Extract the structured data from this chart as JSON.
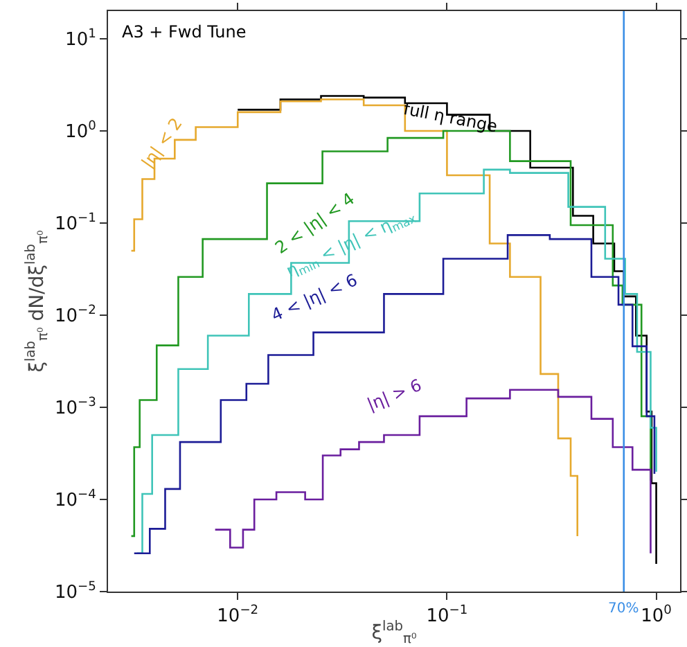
{
  "chart_data": {
    "type": "step",
    "title": "A3 + Fwd Tune",
    "xlabel": "ξ$^{lab}$$_{π⁰}$",
    "ylabel": "ξ$^{lab}$$_{π⁰}$ dN/dξ$^{lab}$$_{π⁰}$",
    "log": "xy",
    "grid": false,
    "legend": false,
    "line_style": "solid",
    "marker": "none",
    "xlim": [
      0.0024,
      1.3
    ],
    "ylim": [
      1e-05,
      20
    ],
    "xticks": [
      {
        "value": 0.01,
        "label": "10$^{−2}$"
      },
      {
        "value": 0.1,
        "label": "10$^{−1}$"
      },
      {
        "value": 1,
        "label": "10$^{0}$"
      }
    ],
    "yticks": [
      {
        "value": 1e-05,
        "label": "10$^{−5}$"
      },
      {
        "value": 0.0001,
        "label": "10$^{−4}$"
      },
      {
        "value": 0.001,
        "label": "10$^{−3}$"
      },
      {
        "value": 0.01,
        "label": "10$^{−2}$"
      },
      {
        "value": 0.1,
        "label": "10$^{−1}$"
      },
      {
        "value": 1,
        "label": "10$^{0}$"
      },
      {
        "value": 10,
        "label": "10$^{1}$"
      }
    ],
    "ref_lines": [
      {
        "axis": "x",
        "value": 0.7,
        "label": "70%",
        "color": "#3a8ee6"
      }
    ],
    "series": [
      {
        "name": "full η range",
        "color": "#000000",
        "x": [
          0.01,
          0.016,
          0.025,
          0.04,
          0.063,
          0.1,
          0.16,
          0.25,
          0.4,
          0.5,
          0.63,
          0.7,
          0.8,
          0.9,
          0.95,
          1.0
        ],
        "values": [
          1.7,
          2.2,
          2.4,
          2.3,
          2.0,
          1.5,
          1.0,
          0.4,
          0.12,
          0.06,
          0.03,
          0.016,
          0.006,
          0.0009,
          0.00015,
          2e-05
        ]
      },
      {
        "name": "|η| < 2",
        "color": "#e6a92e",
        "x": [
          0.0031,
          0.0032,
          0.0035,
          0.004,
          0.005,
          0.0063,
          0.01,
          0.016,
          0.025,
          0.04,
          0.063,
          0.1,
          0.16,
          0.2,
          0.28,
          0.34,
          0.39,
          0.42
        ],
        "values": [
          0.05,
          0.11,
          0.3,
          0.5,
          0.8,
          1.1,
          1.6,
          2.1,
          2.2,
          1.9,
          1.0,
          0.33,
          0.06,
          0.026,
          0.0023,
          0.00046,
          0.00018,
          4e-05
        ]
      },
      {
        "name": "2 < |η| < 4",
        "color": "#229922",
        "x": [
          0.0031,
          0.0032,
          0.0034,
          0.0041,
          0.0052,
          0.0068,
          0.0138,
          0.0254,
          0.052,
          0.096,
          0.2,
          0.39,
          0.62,
          0.69,
          0.85,
          0.94
        ],
        "values": [
          4e-05,
          0.00037,
          0.0012,
          0.0047,
          0.026,
          0.067,
          0.27,
          0.6,
          0.84,
          1.0,
          0.47,
          0.095,
          0.021,
          0.013,
          0.0008,
          0.00016
        ]
      },
      {
        "name": "η$_{min}$ < |η| < η$_{max}$",
        "color": "#3fc4b8",
        "x": [
          0.0033,
          0.0035,
          0.0039,
          0.0052,
          0.0072,
          0.0113,
          0.018,
          0.034,
          0.074,
          0.15,
          0.2,
          0.38,
          0.57,
          0.71,
          0.81,
          0.94,
          1.0
        ],
        "values": [
          2.6e-05,
          0.000115,
          0.0005,
          0.0026,
          0.006,
          0.017,
          0.037,
          0.105,
          0.21,
          0.38,
          0.35,
          0.15,
          0.041,
          0.017,
          0.004,
          0.0006,
          0.0002
        ]
      },
      {
        "name": "4 < |η| < 6",
        "color": "#1c1c96",
        "x": [
          0.0032,
          0.0038,
          0.0045,
          0.0053,
          0.0083,
          0.011,
          0.014,
          0.023,
          0.05,
          0.096,
          0.195,
          0.31,
          0.49,
          0.66,
          0.77,
          0.9,
          0.98
        ],
        "values": [
          2.6e-05,
          4.8e-05,
          0.00013,
          0.00042,
          0.0012,
          0.0018,
          0.0037,
          0.0065,
          0.017,
          0.041,
          0.074,
          0.067,
          0.026,
          0.013,
          0.0046,
          0.0008,
          0.00019
        ]
      },
      {
        "name": "|η| > 6",
        "color": "#6a1e9e",
        "x": [
          0.0078,
          0.0092,
          0.0106,
          0.012,
          0.0153,
          0.021,
          0.0255,
          0.031,
          0.038,
          0.05,
          0.074,
          0.124,
          0.2,
          0.34,
          0.49,
          0.62,
          0.77,
          0.94
        ],
        "values": [
          4.7e-05,
          3e-05,
          4.7e-05,
          0.0001,
          0.00012,
          0.0001,
          0.0003,
          0.00035,
          0.00042,
          0.0005,
          0.0008,
          0.00125,
          0.00155,
          0.0013,
          0.00075,
          0.00037,
          0.00021,
          2.6e-05
        ]
      }
    ]
  }
}
